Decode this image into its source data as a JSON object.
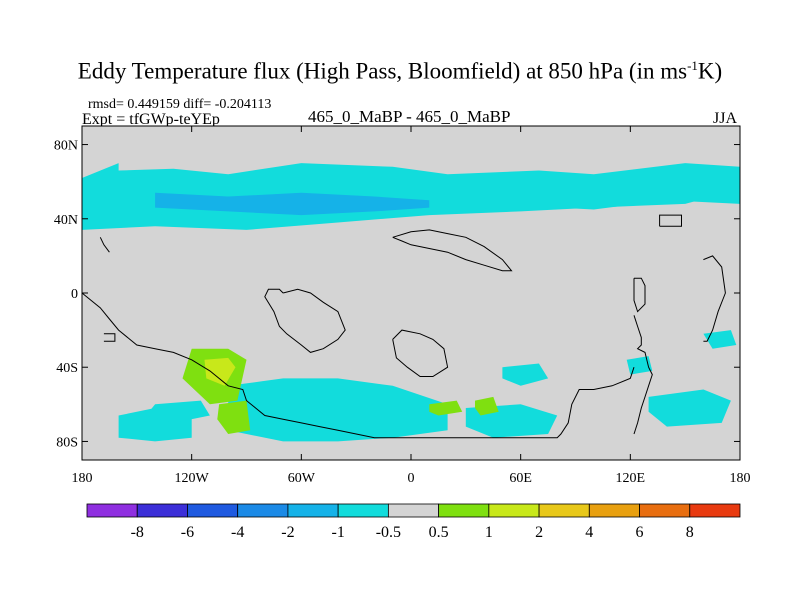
{
  "header": {
    "title_main": "Eddy Temperature flux (High Pass, Bloomfield) at 850 hPa (in ms",
    "title_sup": "-1",
    "title_end": "K)",
    "stats": "rmsd= 0.449159 diff= -0.204113",
    "expt": "Expt = tfGWp-teYEp",
    "experiment_name": "465_0_MaBP - 465_0_MaBP",
    "season": "JJA"
  },
  "chart_data": {
    "type": "heatmap",
    "title": "Eddy Temperature flux (High Pass, Bloomfield) at 850 hPa (in ms-1K)",
    "x_range": [
      -180,
      180
    ],
    "y_range": [
      -90,
      90
    ],
    "x_ticks": [
      {
        "value": -180,
        "label": "180"
      },
      {
        "value": -120,
        "label": "120W"
      },
      {
        "value": -60,
        "label": "60W"
      },
      {
        "value": 0,
        "label": "0"
      },
      {
        "value": 60,
        "label": "60E"
      },
      {
        "value": 120,
        "label": "120E"
      },
      {
        "value": 180,
        "label": "180"
      }
    ],
    "y_ticks": [
      {
        "value": 80,
        "label": "80N"
      },
      {
        "value": 40,
        "label": "40N"
      },
      {
        "value": 0,
        "label": "0"
      },
      {
        "value": -40,
        "label": "40S"
      },
      {
        "value": -80,
        "label": "80S"
      }
    ],
    "background_color": "#d4d4d4",
    "colorbar": {
      "colors": [
        "#8f2fe0",
        "#3c2fd8",
        "#1f5ae0",
        "#1b8ae6",
        "#15b2e8",
        "#12dcdc",
        "#d4d4d4",
        "#7fe010",
        "#c8e81a",
        "#e8c81a",
        "#e8a010",
        "#e86e10",
        "#e83a10"
      ],
      "labels": [
        "-8",
        "-6",
        "-4",
        "-2",
        "-1",
        "-0.5",
        "0.5",
        "1",
        "2",
        "4",
        "6",
        "8"
      ]
    },
    "regions": [
      {
        "level": "-1..-0.5",
        "color": "#12dcdc",
        "lon": [
          -160,
          -160,
          -130,
          -100,
          -60,
          -10,
          20,
          70,
          100,
          150,
          180,
          180,
          150,
          100,
          60,
          10,
          -40,
          -90,
          -140,
          -180,
          -180
        ],
        "lat": [
          70,
          66,
          67,
          64,
          70,
          68,
          64,
          66,
          64,
          70,
          68,
          56,
          48,
          46,
          44,
          42,
          38,
          34,
          36,
          34,
          62
        ]
      },
      {
        "level": "-1..-0.5",
        "color": "#12dcdc",
        "lon": [
          -180,
          -140,
          -100,
          -60,
          -20,
          20,
          60,
          100,
          140,
          180,
          180,
          140,
          100,
          60,
          20,
          -20,
          -60,
          -100,
          -140,
          -180
        ],
        "lat": [
          58,
          57,
          60,
          56,
          57,
          59,
          56,
          54,
          58,
          56,
          48,
          50,
          45,
          47,
          44,
          46,
          43,
          46,
          42,
          44
        ]
      },
      {
        "level": "-2..-1",
        "color": "#15b2e8",
        "lon": [
          -140,
          -100,
          -60,
          -20,
          10,
          10,
          -20,
          -60,
          -100,
          -140
        ],
        "lat": [
          54,
          52,
          54,
          52,
          50,
          46,
          44,
          42,
          44,
          46
        ]
      },
      {
        "level": "-1..-0.5",
        "color": "#12dcdc",
        "lon": [
          -100,
          -70,
          -40,
          -10,
          20,
          20,
          -10,
          -40,
          -70,
          -100
        ],
        "lat": [
          -50,
          -46,
          -46,
          -50,
          -60,
          -74,
          -78,
          -80,
          -80,
          -74
        ]
      },
      {
        "level": "-1..-0.5",
        "color": "#12dcdc",
        "lon": [
          -160,
          -140,
          -120,
          -120,
          -140,
          -160
        ],
        "lat": [
          -66,
          -62,
          -66,
          -78,
          -80,
          -78
        ]
      },
      {
        "level": "-1..-0.5",
        "color": "#12dcdc",
        "lon": [
          -140,
          -115,
          -110,
          -130,
          -145
        ],
        "lat": [
          -60,
          -58,
          -66,
          -70,
          -66
        ]
      },
      {
        "level": "-1..-0.5",
        "color": "#12dcdc",
        "lon": [
          30,
          60,
          80,
          75,
          45,
          30
        ],
        "lat": [
          -62,
          -60,
          -66,
          -76,
          -78,
          -72
        ]
      },
      {
        "level": "-1..-0.5",
        "color": "#12dcdc",
        "lon": [
          50,
          70,
          75,
          60,
          50
        ],
        "lat": [
          -40,
          -38,
          -46,
          -50,
          -46
        ]
      },
      {
        "level": "-1..-0.5",
        "color": "#12dcdc",
        "lon": [
          130,
          160,
          175,
          170,
          140,
          130
        ],
        "lat": [
          -56,
          -52,
          -58,
          -70,
          -72,
          -64
        ]
      },
      {
        "level": "-1..-0.5",
        "color": "#12dcdc",
        "lon": [
          118,
          130,
          132,
          120
        ],
        "lat": [
          -36,
          -34,
          -42,
          -44
        ]
      },
      {
        "level": "-1..-0.5",
        "color": "#12dcdc",
        "lon": [
          160,
          175,
          178,
          165
        ],
        "lat": [
          -22,
          -20,
          -28,
          -30
        ]
      },
      {
        "level": "1..2",
        "color": "#7fe010",
        "lon": [
          -120,
          -100,
          -90,
          -95,
          -110,
          -125
        ],
        "lat": [
          -30,
          -30,
          -36,
          -58,
          -60,
          -46
        ]
      },
      {
        "level": "2..4",
        "color": "#c8e81a",
        "lon": [
          -113,
          -100,
          -96,
          -102,
          -112
        ],
        "lat": [
          -36,
          -35,
          -40,
          -50,
          -46
        ]
      },
      {
        "level": "1..2",
        "color": "#7fe010",
        "lon": [
          -105,
          -90,
          -88,
          -100,
          -106
        ],
        "lat": [
          -60,
          -58,
          -74,
          -76,
          -68
        ]
      },
      {
        "level": "1..2",
        "color": "#7fe010",
        "lon": [
          10,
          25,
          28,
          15,
          10
        ],
        "lat": [
          -60,
          -58,
          -64,
          -66,
          -64
        ]
      },
      {
        "level": "1..2",
        "color": "#7fe010",
        "lon": [
          35,
          45,
          48,
          38,
          35
        ],
        "lat": [
          -58,
          -56,
          -64,
          -66,
          -62
        ]
      }
    ],
    "land_outlines": [
      {
        "name": "north-africa-arabia",
        "lon": [
          -10,
          0,
          10,
          20,
          30,
          40,
          50,
          55,
          50,
          40,
          30,
          20,
          10,
          0,
          -5,
          -10
        ],
        "lat": [
          30,
          33,
          34,
          32,
          30,
          25,
          18,
          12,
          12,
          15,
          18,
          22,
          24,
          26,
          28,
          30
        ]
      },
      {
        "name": "south-america",
        "lon": [
          -70,
          -62,
          -55,
          -48,
          -40,
          -36,
          -40,
          -48,
          -55,
          -60,
          -68,
          -72,
          -75,
          -80,
          -78,
          -72,
          -70
        ],
        "lat": [
          0,
          2,
          0,
          -5,
          -10,
          -20,
          -25,
          -30,
          -32,
          -28,
          -22,
          -18,
          -10,
          -2,
          2,
          2,
          0
        ]
      },
      {
        "name": "southern-africa",
        "lon": [
          -10,
          -5,
          5,
          12,
          18,
          20,
          12,
          5,
          -2,
          -8,
          -10
        ],
        "lat": [
          -25,
          -20,
          -22,
          -25,
          -30,
          -40,
          -45,
          -45,
          -40,
          -35,
          -25
        ]
      },
      {
        "name": "east-coast-line",
        "lon": [
          122,
          124,
          126,
          126,
          124,
          128,
          130,
          132,
          130,
          128,
          126,
          124,
          122
        ],
        "lat": [
          -12,
          -18,
          -24,
          -28,
          -30,
          -32,
          -40,
          -44,
          -50,
          -56,
          -62,
          -70,
          -76
        ]
      },
      {
        "name": "west-coast-line",
        "lon": [
          -180,
          -170,
          -165,
          -160,
          -150,
          -140,
          -130,
          -120,
          -110,
          -100,
          -92,
          -90,
          -85,
          -80,
          -70,
          -60,
          -50,
          -40,
          -30,
          -20,
          -10,
          0,
          10,
          20,
          30,
          40,
          50,
          60,
          70,
          80,
          82,
          86,
          88,
          92,
          100,
          110,
          120,
          122
        ],
        "lat": [
          0,
          -8,
          -14,
          -20,
          -28,
          -30,
          -32,
          -36,
          -42,
          -50,
          -52,
          -58,
          -62,
          -66,
          -68,
          -70,
          -72,
          -74,
          -76,
          -78,
          -78,
          -78,
          -78,
          -78,
          -78,
          -78,
          -78,
          -78,
          -78,
          -78,
          -76,
          -70,
          -60,
          -52,
          -52,
          -50,
          -46,
          -40
        ]
      },
      {
        "name": "north-pacific-box",
        "lon": [
          136,
          148,
          148,
          136,
          136
        ],
        "lat": [
          36,
          36,
          42,
          42,
          36
        ]
      },
      {
        "name": "indian-island",
        "lon": [
          122,
          126,
          128,
          128,
          124,
          122,
          122
        ],
        "lat": [
          8,
          8,
          4,
          -6,
          -10,
          -4,
          8
        ]
      },
      {
        "name": "east-coast-north",
        "lon": [
          160,
          165,
          170,
          172,
          168,
          165,
          162,
          160
        ],
        "lat": [
          18,
          20,
          14,
          0,
          -10,
          -20,
          -26,
          -26
        ]
      },
      {
        "name": "west-indies",
        "lon": [
          -170,
          -168,
          -165
        ],
        "lat": [
          30,
          26,
          22
        ]
      },
      {
        "name": "antarctic-islands",
        "lon": [
          -168,
          -162,
          -162,
          -168
        ],
        "lat": [
          -22,
          -22,
          -26,
          -26
        ]
      }
    ]
  }
}
